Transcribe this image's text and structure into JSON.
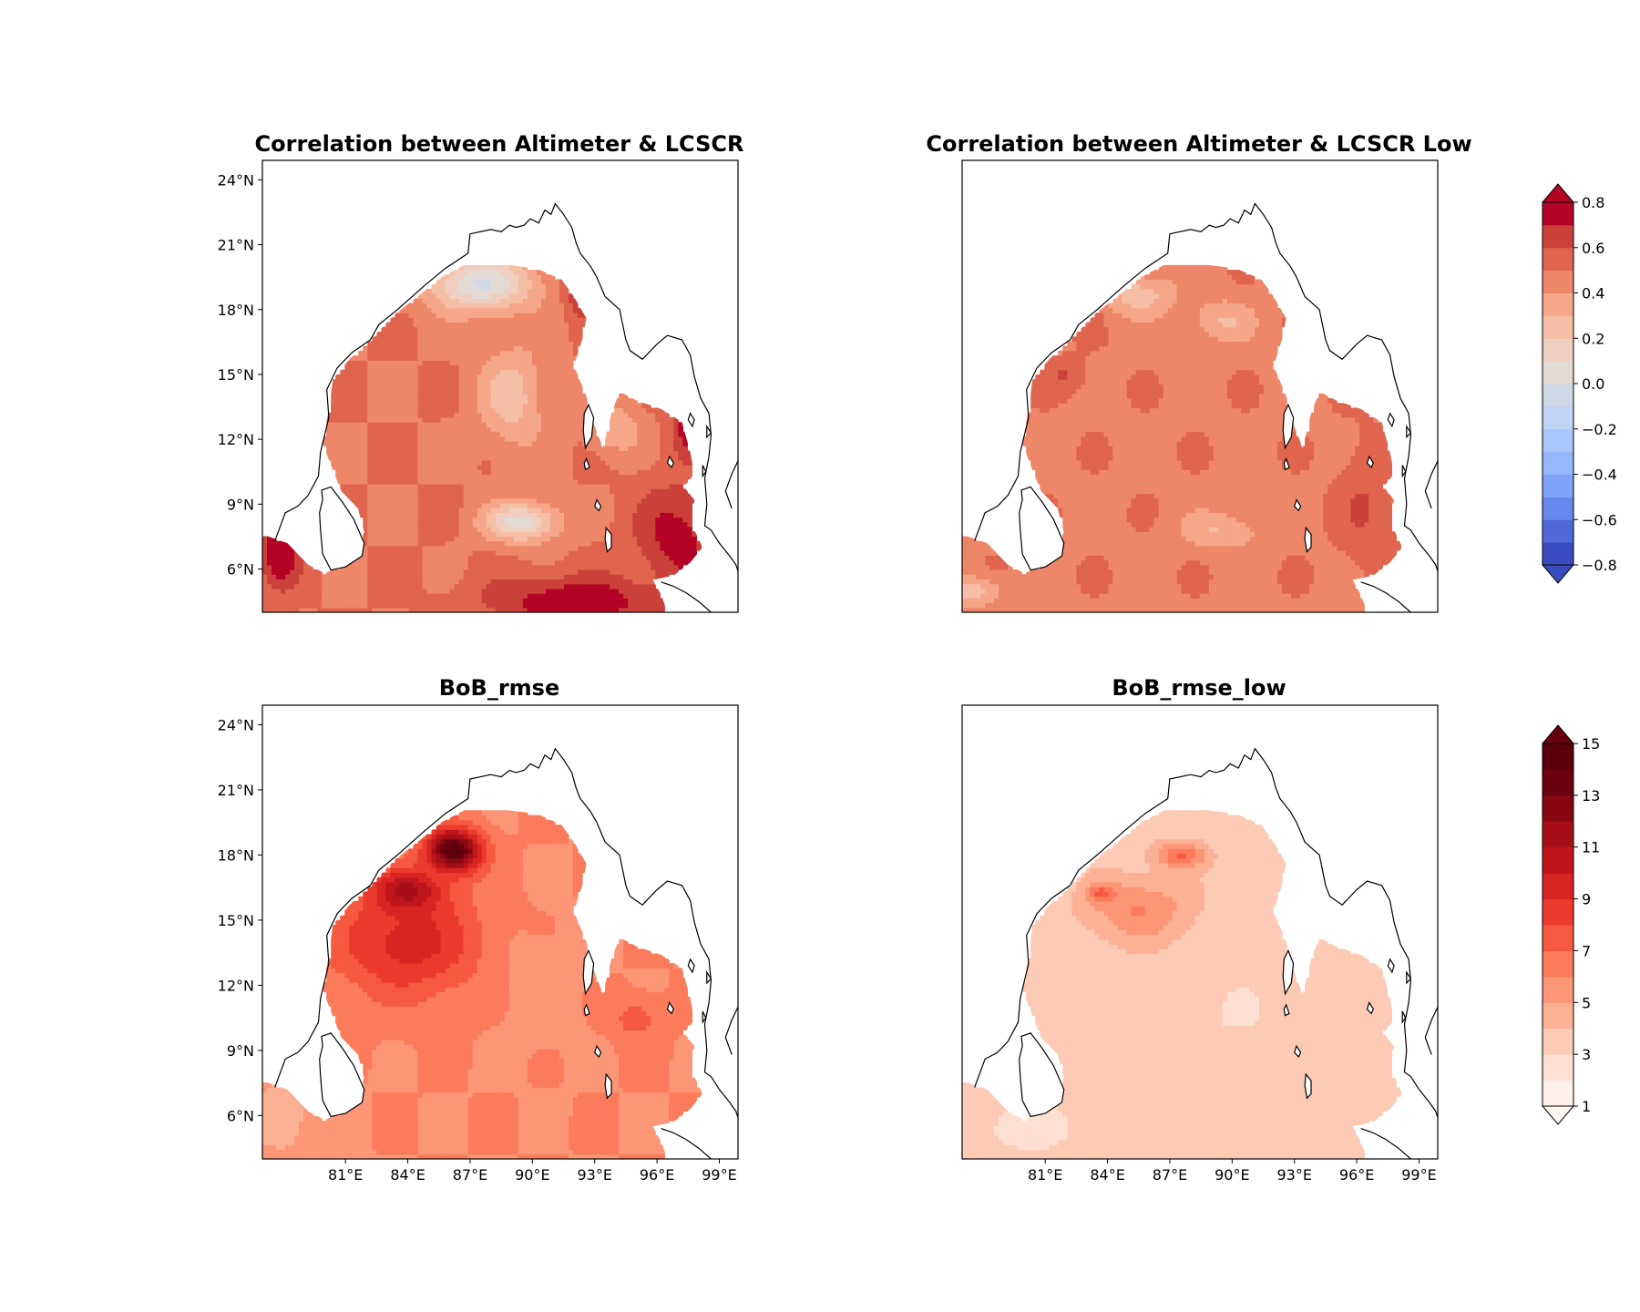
{
  "chart_data": [
    {
      "type": "heatmap",
      "title": "Correlation between Altimeter & LCSCR",
      "xlabel": "",
      "ylabel": "",
      "xlim": [
        77,
        99.9
      ],
      "ylim": [
        4,
        24.9
      ],
      "x_ticks": [
        "81°E",
        "84°E",
        "87°E",
        "90°E",
        "93°E",
        "96°E",
        "99°E"
      ],
      "y_ticks": [
        "24°N",
        "21°N",
        "18°N",
        "15°N",
        "12°N",
        "9°N",
        "6°N"
      ],
      "x_tick_values": [
        81,
        84,
        87,
        90,
        93,
        96,
        99
      ],
      "y_tick_values": [
        24,
        21,
        18,
        15,
        12,
        9,
        6
      ],
      "show_x_ticks": false,
      "colormap": "corr",
      "field": {
        "base": 0.5,
        "blobs": [
          {
            "lon": 87.5,
            "lat": 19.2,
            "value": 0.0,
            "rlon": 2.6,
            "rlat": 1.3
          },
          {
            "lon": 89.5,
            "lat": 8.2,
            "value": 0.05,
            "rlon": 1.8,
            "rlat": 0.9
          },
          {
            "lon": 89.0,
            "lat": 14.0,
            "value": 0.25,
            "rlon": 1.6,
            "rlat": 2.4
          },
          {
            "lon": 94.0,
            "lat": 12.5,
            "value": 0.3,
            "rlon": 1.2,
            "rlat": 1.2
          },
          {
            "lon": 77.8,
            "lat": 6.8,
            "value": 0.8,
            "rlon": 1.0,
            "rlat": 1.6
          },
          {
            "lon": 92.0,
            "lat": 4.5,
            "value": 0.8,
            "rlon": 4.0,
            "rlat": 1.2
          },
          {
            "lon": 97.0,
            "lat": 7.5,
            "value": 0.75,
            "rlon": 2.0,
            "rlat": 2.5
          },
          {
            "lon": 92.5,
            "lat": 19.0,
            "value": 0.8,
            "rlon": 0.8,
            "rlat": 1.2
          },
          {
            "lon": 97.5,
            "lat": 12.5,
            "value": 0.75,
            "rlon": 0.8,
            "rlat": 1.2
          }
        ]
      }
    },
    {
      "type": "heatmap",
      "title": "Correlation between Altimeter & LCSCR Low",
      "xlabel": "",
      "ylabel": "",
      "xlim": [
        77,
        99.9
      ],
      "ylim": [
        4,
        24.9
      ],
      "x_ticks": [
        "81°E",
        "84°E",
        "87°E",
        "90°E",
        "93°E",
        "96°E",
        "99°E"
      ],
      "y_ticks": [],
      "x_tick_values": [
        81,
        84,
        87,
        90,
        93,
        96,
        99
      ],
      "y_tick_values": [
        24,
        21,
        18,
        15,
        12,
        9,
        6
      ],
      "show_x_ticks": false,
      "colormap": "corr",
      "field": {
        "base": 0.48,
        "blobs": [
          {
            "lon": 85.5,
            "lat": 18.7,
            "value": 0.25,
            "rlon": 1.8,
            "rlat": 1.0
          },
          {
            "lon": 89.5,
            "lat": 7.8,
            "value": 0.3,
            "rlon": 2.0,
            "rlat": 0.9
          },
          {
            "lon": 89.5,
            "lat": 17.5,
            "value": 0.3,
            "rlon": 1.6,
            "rlat": 1.0
          },
          {
            "lon": 82.0,
            "lat": 15.0,
            "value": 0.6,
            "rlon": 1.0,
            "rlat": 0.8
          },
          {
            "lon": 82.5,
            "lat": 18.0,
            "value": 0.75,
            "rlon": 0.8,
            "rlat": 0.8
          },
          {
            "lon": 96.5,
            "lat": 9.0,
            "value": 0.6,
            "rlon": 1.4,
            "rlat": 3.0
          },
          {
            "lon": 77.5,
            "lat": 5.0,
            "value": 0.25,
            "rlon": 1.5,
            "rlat": 0.7
          }
        ]
      }
    },
    {
      "type": "heatmap",
      "title": "BoB_rmse",
      "xlabel": "",
      "ylabel": "",
      "xlim": [
        77,
        99.9
      ],
      "ylim": [
        4,
        24.9
      ],
      "x_ticks": [
        "81°E",
        "84°E",
        "87°E",
        "90°E",
        "93°E",
        "96°E",
        "99°E"
      ],
      "y_ticks": [
        "24°N",
        "21°N",
        "18°N",
        "15°N",
        "12°N",
        "9°N",
        "6°N"
      ],
      "x_tick_values": [
        81,
        84,
        87,
        90,
        93,
        96,
        99
      ],
      "y_tick_values": [
        24,
        21,
        18,
        15,
        12,
        9,
        6
      ],
      "show_x_ticks": true,
      "colormap": "rmse",
      "field": {
        "base": 6.0,
        "blobs": [
          {
            "lon": 86.2,
            "lat": 18.2,
            "value": 15.0,
            "rlon": 1.3,
            "rlat": 1.0
          },
          {
            "lon": 84.0,
            "lat": 16.2,
            "value": 13.0,
            "rlon": 1.6,
            "rlat": 1.0
          },
          {
            "lon": 84.0,
            "lat": 14.0,
            "value": 9.5,
            "rlon": 3.5,
            "rlat": 2.5
          },
          {
            "lon": 78.0,
            "lat": 6.0,
            "value": 4.5,
            "rlon": 2.0,
            "rlat": 2.5
          },
          {
            "lon": 90.5,
            "lat": 12.0,
            "value": 5.5,
            "rlon": 2.0,
            "rlat": 3.0
          },
          {
            "lon": 95.0,
            "lat": 10.5,
            "value": 7.5,
            "rlon": 1.2,
            "rlat": 1.0
          }
        ]
      }
    },
    {
      "type": "heatmap",
      "title": "BoB_rmse_low",
      "xlabel": "",
      "ylabel": "",
      "xlim": [
        77,
        99.9
      ],
      "ylim": [
        4,
        24.9
      ],
      "x_ticks": [
        "81°E",
        "84°E",
        "87°E",
        "90°E",
        "93°E",
        "96°E",
        "99°E"
      ],
      "y_ticks": [],
      "x_tick_values": [
        81,
        84,
        87,
        90,
        93,
        96,
        99
      ],
      "y_tick_values": [
        24,
        21,
        18,
        15,
        12,
        9,
        6
      ],
      "show_x_ticks": true,
      "colormap": "rmse",
      "field": {
        "base": 3.5,
        "blobs": [
          {
            "lon": 83.8,
            "lat": 16.2,
            "value": 8.5,
            "rlon": 0.7,
            "rlat": 0.5
          },
          {
            "lon": 85.5,
            "lat": 15.5,
            "value": 6.0,
            "rlon": 2.5,
            "rlat": 1.5
          },
          {
            "lon": 87.5,
            "lat": 18.0,
            "value": 7.0,
            "rlon": 1.2,
            "rlat": 0.6
          },
          {
            "lon": 80.0,
            "lat": 5.5,
            "value": 2.5,
            "rlon": 2.5,
            "rlat": 1.2
          },
          {
            "lon": 90.0,
            "lat": 10.5,
            "value": 3.0,
            "rlon": 3.0,
            "rlat": 2.0
          },
          {
            "lon": 96.0,
            "lat": 9.0,
            "value": 3.2,
            "rlon": 2.0,
            "rlat": 3.0
          }
        ]
      }
    }
  ],
  "colorbars": [
    {
      "name": "correlation",
      "min": -0.8,
      "max": 0.8,
      "tick_labels": [
        "0.8",
        "0.6",
        "0.4",
        "0.2",
        "0.0",
        "−0.2",
        "−0.4",
        "−0.6",
        "−0.8"
      ],
      "tick_values": [
        0.8,
        0.6,
        0.4,
        0.2,
        0.0,
        -0.2,
        -0.4,
        -0.6,
        -0.8
      ],
      "levels": 16,
      "colors": [
        "#3b4cc0",
        "#4f69d9",
        "#6788ee",
        "#7ea3f8",
        "#95b7fe",
        "#aac7fd",
        "#bfd3f6",
        "#d0d9e8",
        "#e2dad5",
        "#efcfbf",
        "#f4bfa5",
        "#f6a789",
        "#ee8669",
        "#e0654f",
        "#cc403a",
        "#b40426"
      ],
      "extend_color": "#b40426",
      "extend_color_low": "#3b4cc0"
    },
    {
      "name": "rmse",
      "min": 1,
      "max": 15,
      "tick_labels": [
        "15",
        "13",
        "11",
        "9",
        "7",
        "5",
        "3",
        "1"
      ],
      "tick_values": [
        15,
        13,
        11,
        9,
        7,
        5,
        3,
        1
      ],
      "levels": 14,
      "colors": [
        "#fff0eb",
        "#fee0d2",
        "#fdcab5",
        "#fcb195",
        "#fc9677",
        "#fb7b5b",
        "#f6593f",
        "#eb3b2c",
        "#d72523",
        "#c0161b",
        "#a50f15",
        "#870811",
        "#6b0010",
        "#5a000b"
      ],
      "extend_color": "#67000d",
      "extend_color_low": "#fff5f0"
    }
  ],
  "map_style": {
    "land_color": "#ffffff",
    "coast_color": "#000000"
  }
}
